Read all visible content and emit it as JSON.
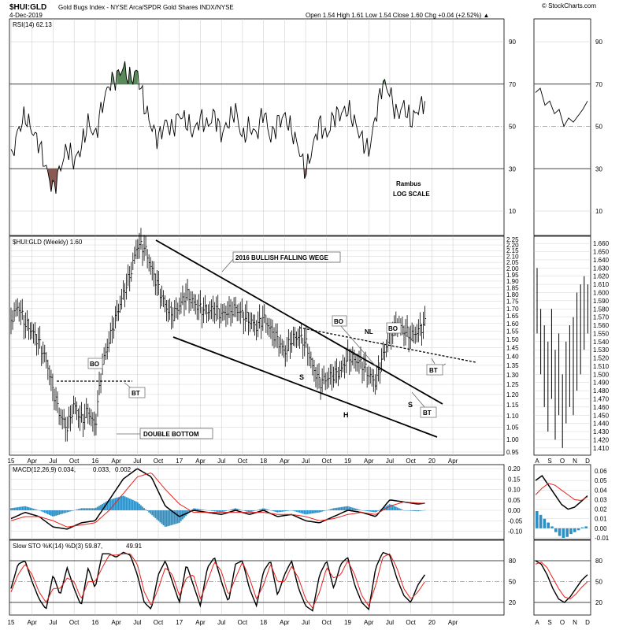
{
  "header": {
    "symbol": "$HUI:GLD",
    "name": "Gold Bugs Index - NYSE Arca/SPDR Gold Shares INDX/NYSE",
    "date": "4-Dec-2019",
    "ohlc": "Open 1.54  High 1.61  Low 1.54  Close 1.60  Chg +0.04 (+2.52%) ▲",
    "credit": "© StockCharts.com"
  },
  "panels": {
    "rsi": {
      "label": "RSI(14) 62.13",
      "ticks": [
        "90",
        "70",
        "50",
        "30",
        "10"
      ]
    },
    "price": {
      "label": "$HUI:GLD (Weekly) 1.60",
      "ticks": [
        "2.25",
        "2.20",
        "2.15",
        "2.10",
        "2.05",
        "2.00",
        "1.95",
        "1.90",
        "1.85",
        "1.80",
        "1.75",
        "1.70",
        "1.65",
        "1.60",
        "1.55",
        "1.50",
        "1.45",
        "1.40",
        "1.35",
        "1.30",
        "1.25",
        "1.20",
        "1.15",
        "1.10",
        "1.05",
        "1.00",
        "0.95"
      ],
      "detail_ticks": [
        "1.660",
        "1.650",
        "1.640",
        "1.630",
        "1.620",
        "1.610",
        "1.600",
        "1.590",
        "1.580",
        "1.570",
        "1.560",
        "1.550",
        "1.540",
        "1.530",
        "1.520",
        "1.510",
        "1.500",
        "1.490",
        "1.480",
        "1.470",
        "1.460",
        "1.450",
        "1.440",
        "1.430",
        "1.420",
        "1.410"
      ]
    },
    "macd": {
      "label_main": "MACD(12,26,9) 0.034,",
      "label_signal": "0.033,",
      "label_hist": "0.002",
      "ticks": [
        "0.20",
        "0.15",
        "0.10",
        "0.05",
        "0.00",
        "-0.05",
        "-0.10"
      ],
      "detail_ticks": [
        "0.06",
        "0.05",
        "0.04",
        "0.03",
        "0.02",
        "0.01",
        "0.00",
        "-0.01"
      ]
    },
    "sto": {
      "label_main": "Slow STO %K(14) %D(3) 59.87,",
      "label_signal": "49.91",
      "ticks": [
        "80",
        "50",
        "20"
      ]
    }
  },
  "annotations": {
    "rambus": "Rambus",
    "log_scale": "LOG SCALE",
    "wedge": "2016 BULLISH FALLING WEGE",
    "double_bottom": "DOUBLE BOTTOM",
    "bo": "BO",
    "bt": "BT",
    "nl": "NL",
    "s": "S",
    "h": "H"
  },
  "x_labels": [
    "15",
    "Apr",
    "Jul",
    "Oct",
    "16",
    "Apr",
    "Jul",
    "Oct",
    "17",
    "Apr",
    "Jul",
    "Oct",
    "18",
    "Apr",
    "Jul",
    "Oct",
    "19",
    "Apr",
    "Jul",
    "Oct",
    "20",
    "Apr"
  ],
  "detail_x_labels": [
    "A",
    "S",
    "O",
    "N",
    "D"
  ],
  "colors": {
    "price_line": "#000000",
    "macd_signal": "#e8211c",
    "macd_hist": "#2c8fc6",
    "overbought_fill": "#5a8a5a",
    "oversold_fill": "#8a5a52",
    "bo_bt_text": "#0c23c8",
    "gridline": "#c8c8c8"
  },
  "chart_data": {
    "type": "line",
    "frequency": "weekly",
    "x_start": "2015-01",
    "x_end": "2019-12",
    "price": {
      "scale": "log",
      "ylim": [
        0.95,
        2.25
      ],
      "points": [
        [
          "2015-01",
          1.62
        ],
        [
          "2015-02",
          1.72
        ],
        [
          "2015-03",
          1.6
        ],
        [
          "2015-04",
          1.55
        ],
        [
          "2015-05",
          1.48
        ],
        [
          "2015-06",
          1.38
        ],
        [
          "2015-07",
          1.22
        ],
        [
          "2015-08",
          1.1
        ],
        [
          "2015-09",
          1.05
        ],
        [
          "2015-10",
          1.15
        ],
        [
          "2015-11",
          1.08
        ],
        [
          "2015-12",
          1.12
        ],
        [
          "2016-01",
          1.05
        ],
        [
          "2016-02",
          1.35
        ],
        [
          "2016-03",
          1.5
        ],
        [
          "2016-04",
          1.65
        ],
        [
          "2016-05",
          1.8
        ],
        [
          "2016-06",
          1.95
        ],
        [
          "2016-07",
          2.2
        ],
        [
          "2016-08",
          2.18
        ],
        [
          "2016-09",
          2.0
        ],
        [
          "2016-10",
          1.85
        ],
        [
          "2016-11",
          1.72
        ],
        [
          "2016-12",
          1.65
        ],
        [
          "2017-01",
          1.72
        ],
        [
          "2017-02",
          1.8
        ],
        [
          "2017-03",
          1.74
        ],
        [
          "2017-04",
          1.7
        ],
        [
          "2017-05",
          1.68
        ],
        [
          "2017-06",
          1.7
        ],
        [
          "2017-07",
          1.66
        ],
        [
          "2017-08",
          1.68
        ],
        [
          "2017-09",
          1.7
        ],
        [
          "2017-10",
          1.66
        ],
        [
          "2017-11",
          1.62
        ],
        [
          "2017-12",
          1.58
        ],
        [
          "2018-01",
          1.64
        ],
        [
          "2018-02",
          1.56
        ],
        [
          "2018-03",
          1.5
        ],
        [
          "2018-04",
          1.42
        ],
        [
          "2018-05",
          1.5
        ],
        [
          "2018-06",
          1.52
        ],
        [
          "2018-07",
          1.48
        ],
        [
          "2018-08",
          1.34
        ],
        [
          "2018-09",
          1.26
        ],
        [
          "2018-10",
          1.28
        ],
        [
          "2018-11",
          1.3
        ],
        [
          "2018-12",
          1.32
        ],
        [
          "2019-01",
          1.4
        ],
        [
          "2019-02",
          1.38
        ],
        [
          "2019-03",
          1.36
        ],
        [
          "2019-04",
          1.3
        ],
        [
          "2019-05",
          1.26
        ],
        [
          "2019-06",
          1.4
        ],
        [
          "2019-07",
          1.52
        ],
        [
          "2019-08",
          1.6
        ],
        [
          "2019-09",
          1.56
        ],
        [
          "2019-10",
          1.52
        ],
        [
          "2019-11",
          1.55
        ],
        [
          "2019-12",
          1.6
        ]
      ]
    },
    "rsi": {
      "ylim": [
        0,
        100
      ],
      "levels": [
        30,
        50,
        70
      ],
      "points": [
        [
          "2015-01",
          34
        ],
        [
          "2015-02",
          48
        ],
        [
          "2015-03",
          55
        ],
        [
          "2015-04",
          48
        ],
        [
          "2015-05",
          42
        ],
        [
          "2015-06",
          30
        ],
        [
          "2015-07",
          20
        ],
        [
          "2015-08",
          30
        ],
        [
          "2015-09",
          40
        ],
        [
          "2015-10",
          33
        ],
        [
          "2015-11",
          40
        ],
        [
          "2015-12",
          52
        ],
        [
          "2016-01",
          45
        ],
        [
          "2016-02",
          60
        ],
        [
          "2016-03",
          70
        ],
        [
          "2016-04",
          73
        ],
        [
          "2016-05",
          78
        ],
        [
          "2016-06",
          72
        ],
        [
          "2016-07",
          76
        ],
        [
          "2016-08",
          60
        ],
        [
          "2016-09",
          50
        ],
        [
          "2016-10",
          44
        ],
        [
          "2016-11",
          52
        ],
        [
          "2016-12",
          48
        ],
        [
          "2017-01",
          56
        ],
        [
          "2017-02",
          52
        ],
        [
          "2017-03",
          47
        ],
        [
          "2017-04",
          54
        ],
        [
          "2017-05",
          50
        ],
        [
          "2017-06",
          56
        ],
        [
          "2017-07",
          46
        ],
        [
          "2017-08",
          52
        ],
        [
          "2017-09",
          58
        ],
        [
          "2017-10",
          44
        ],
        [
          "2017-11",
          50
        ],
        [
          "2017-12",
          46
        ],
        [
          "2018-01",
          58
        ],
        [
          "2018-02",
          44
        ],
        [
          "2018-03",
          52
        ],
        [
          "2018-04",
          55
        ],
        [
          "2018-05",
          48
        ],
        [
          "2018-06",
          40
        ],
        [
          "2018-07",
          28
        ],
        [
          "2018-08",
          40
        ],
        [
          "2018-09",
          52
        ],
        [
          "2018-10",
          45
        ],
        [
          "2018-11",
          55
        ],
        [
          "2018-12",
          56
        ],
        [
          "2019-01",
          58
        ],
        [
          "2019-02",
          52
        ],
        [
          "2019-03",
          44
        ],
        [
          "2019-04",
          38
        ],
        [
          "2019-05",
          55
        ],
        [
          "2019-06",
          71
        ],
        [
          "2019-07",
          66
        ],
        [
          "2019-08",
          55
        ],
        [
          "2019-09",
          60
        ],
        [
          "2019-10",
          52
        ],
        [
          "2019-11",
          58
        ],
        [
          "2019-12",
          62.13
        ]
      ]
    },
    "macd": {
      "ylim": [
        -0.1,
        0.2
      ],
      "macd": 0.034,
      "signal": 0.033,
      "histogram": 0.002,
      "points": [
        [
          "2015-01",
          -0.04,
          -0.05
        ],
        [
          "2015-03",
          -0.01,
          -0.03
        ],
        [
          "2015-05",
          -0.03,
          -0.03
        ],
        [
          "2015-07",
          -0.08,
          -0.05
        ],
        [
          "2015-09",
          -0.09,
          -0.08
        ],
        [
          "2015-11",
          -0.06,
          -0.07
        ],
        [
          "2016-01",
          -0.05,
          -0.06
        ],
        [
          "2016-03",
          0.05,
          0.0
        ],
        [
          "2016-05",
          0.15,
          0.08
        ],
        [
          "2016-07",
          0.2,
          0.16
        ],
        [
          "2016-09",
          0.16,
          0.18
        ],
        [
          "2016-11",
          0.02,
          0.1
        ],
        [
          "2017-01",
          -0.03,
          0.03
        ],
        [
          "2017-03",
          0.0,
          -0.01
        ],
        [
          "2017-05",
          -0.01,
          -0.01
        ],
        [
          "2017-07",
          -0.02,
          -0.01
        ],
        [
          "2017-09",
          0.0,
          -0.01
        ],
        [
          "2017-11",
          -0.02,
          -0.01
        ],
        [
          "2018-01",
          0.0,
          -0.01
        ],
        [
          "2018-03",
          -0.03,
          -0.02
        ],
        [
          "2018-05",
          -0.02,
          -0.02
        ],
        [
          "2018-07",
          -0.05,
          -0.03
        ],
        [
          "2018-09",
          -0.06,
          -0.05
        ],
        [
          "2018-11",
          -0.03,
          -0.04
        ],
        [
          "2019-01",
          0.0,
          -0.02
        ],
        [
          "2019-03",
          -0.01,
          -0.01
        ],
        [
          "2019-05",
          -0.03,
          -0.02
        ],
        [
          "2019-07",
          0.05,
          0.02
        ],
        [
          "2019-09",
          0.04,
          0.04
        ],
        [
          "2019-11",
          0.03,
          0.035
        ],
        [
          "2019-12",
          0.034,
          0.033
        ]
      ]
    },
    "slow_sto": {
      "ylim": [
        0,
        100
      ],
      "levels": [
        20,
        50,
        80
      ],
      "k": 59.87,
      "d": 49.91,
      "points": [
        [
          "2015-01",
          40,
          35
        ],
        [
          "2015-02",
          75,
          60
        ],
        [
          "2015-03",
          80,
          75
        ],
        [
          "2015-04",
          50,
          60
        ],
        [
          "2015-05",
          25,
          35
        ],
        [
          "2015-06",
          10,
          20
        ],
        [
          "2015-07",
          60,
          40
        ],
        [
          "2015-08",
          30,
          40
        ],
        [
          "2015-09",
          70,
          55
        ],
        [
          "2015-10",
          40,
          50
        ],
        [
          "2015-11",
          15,
          25
        ],
        [
          "2015-12",
          70,
          50
        ],
        [
          "2016-01",
          40,
          50
        ],
        [
          "2016-02",
          90,
          70
        ],
        [
          "2016-03",
          90,
          88
        ],
        [
          "2016-04",
          85,
          88
        ],
        [
          "2016-05",
          92,
          90
        ],
        [
          "2016-06",
          88,
          90
        ],
        [
          "2016-07",
          60,
          75
        ],
        [
          "2016-08",
          20,
          35
        ],
        [
          "2016-09",
          10,
          15
        ],
        [
          "2016-10",
          60,
          40
        ],
        [
          "2016-11",
          80,
          70
        ],
        [
          "2016-12",
          50,
          60
        ],
        [
          "2017-01",
          20,
          30
        ],
        [
          "2017-02",
          75,
          55
        ],
        [
          "2017-03",
          45,
          60
        ],
        [
          "2017-04",
          15,
          25
        ],
        [
          "2017-05",
          70,
          50
        ],
        [
          "2017-06",
          85,
          78
        ],
        [
          "2017-07",
          50,
          65
        ],
        [
          "2017-08",
          20,
          30
        ],
        [
          "2017-09",
          75,
          55
        ],
        [
          "2017-10",
          80,
          78
        ],
        [
          "2017-11",
          40,
          55
        ],
        [
          "2017-12",
          15,
          25
        ],
        [
          "2018-01",
          65,
          45
        ],
        [
          "2018-02",
          80,
          75
        ],
        [
          "2018-03",
          30,
          50
        ],
        [
          "2018-04",
          60,
          50
        ],
        [
          "2018-05",
          80,
          72
        ],
        [
          "2018-06",
          40,
          55
        ],
        [
          "2018-07",
          15,
          25
        ],
        [
          "2018-08",
          8,
          12
        ],
        [
          "2018-09",
          60,
          35
        ],
        [
          "2018-10",
          80,
          70
        ],
        [
          "2018-11",
          40,
          55
        ],
        [
          "2018-12",
          75,
          60
        ],
        [
          "2019-01",
          85,
          80
        ],
        [
          "2019-02",
          45,
          60
        ],
        [
          "2019-03",
          20,
          30
        ],
        [
          "2019-04",
          10,
          15
        ],
        [
          "2019-05",
          70,
          45
        ],
        [
          "2019-06",
          92,
          85
        ],
        [
          "2019-07",
          88,
          90
        ],
        [
          "2019-08",
          55,
          70
        ],
        [
          "2019-09",
          30,
          40
        ],
        [
          "2019-10",
          20,
          25
        ],
        [
          "2019-11",
          45,
          35
        ],
        [
          "2019-12",
          59.87,
          49.91
        ]
      ]
    },
    "detail_window": {
      "period": "2019-08 to 2019-12",
      "frequency": "daily",
      "price_ylim": [
        1.41,
        1.66
      ],
      "rsi_points": [
        66,
        68,
        60,
        62,
        56,
        58,
        50,
        54,
        52,
        55,
        58,
        62
      ],
      "macd_points": [
        [
          0.05,
          0.035
        ],
        [
          0.055,
          0.042
        ],
        [
          0.045,
          0.047
        ],
        [
          0.035,
          0.045
        ],
        [
          0.025,
          0.04
        ],
        [
          0.02,
          0.035
        ],
        [
          0.022,
          0.03
        ],
        [
          0.028,
          0.029
        ],
        [
          0.034,
          0.033
        ]
      ],
      "macd_hist": [
        0.018,
        0.014,
        0.01,
        0.006,
        0.002,
        -0.004,
        -0.008,
        -0.01,
        -0.009,
        -0.006,
        -0.004,
        -0.002,
        0.001,
        0.002
      ],
      "sto_points": [
        [
          80,
          75
        ],
        [
          75,
          78
        ],
        [
          60,
          70
        ],
        [
          40,
          55
        ],
        [
          25,
          40
        ],
        [
          20,
          28
        ],
        [
          28,
          25
        ],
        [
          40,
          32
        ],
        [
          52,
          42
        ],
        [
          59.87,
          49.91
        ]
      ]
    }
  }
}
